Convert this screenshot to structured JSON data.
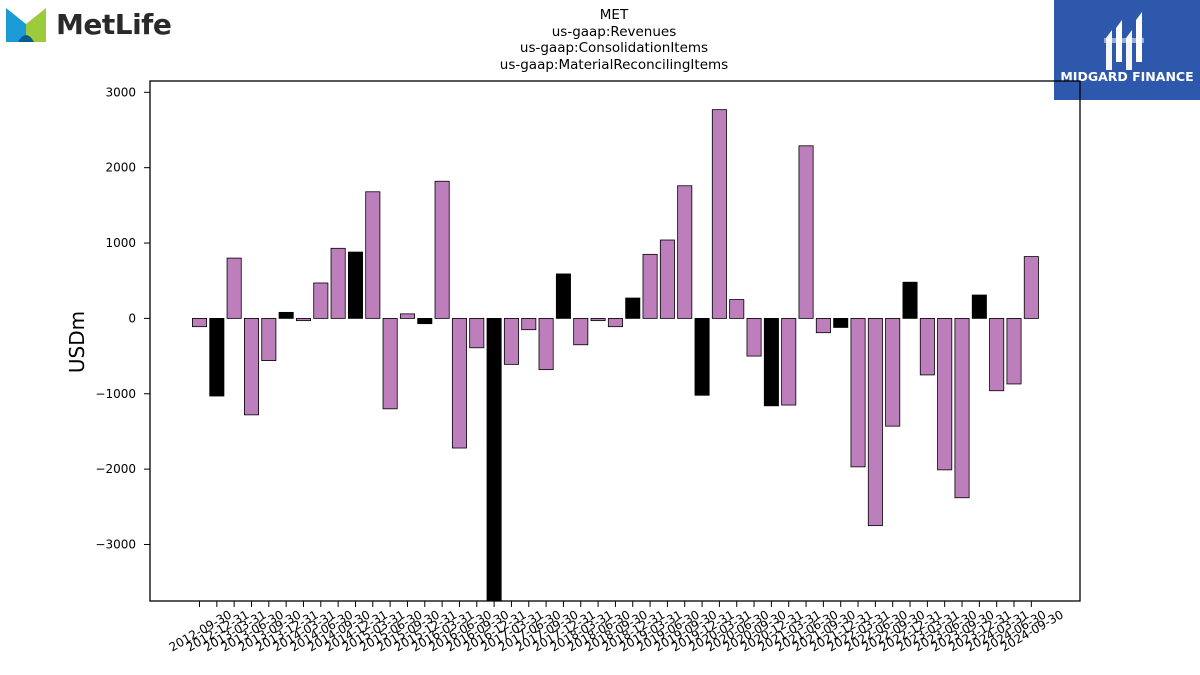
{
  "header": {
    "company_logo_text": "MetLife",
    "title_lines": [
      "MET",
      "us-gaap:Revenues",
      "us-gaap:ConsolidationItems",
      "us-gaap:MaterialReconcilingItems"
    ],
    "watermark_text": "MIDGARD FINANCE"
  },
  "colors": {
    "bar_default": "#bc7fbc",
    "bar_highlight": "#000000",
    "bar_edge": "#000000",
    "watermark_bg": "#2e58ac",
    "metlife_blue": "#1c9ad6",
    "metlife_green": "#9ccb3b"
  },
  "chart_data": {
    "type": "bar",
    "title": "MET\nus-gaap:Revenues\nus-gaap:ConsolidationItems\nus-gaap:MaterialReconcilingItems",
    "xlabel": "",
    "ylabel": "USDm",
    "ylim": [
      -3750,
      3150
    ],
    "yticks": [
      3000,
      2000,
      1000,
      0,
      -1000,
      -2000,
      -3000
    ],
    "ytick_labels": [
      "3000",
      "2000",
      "1000",
      "0",
      "−1000",
      "−2000",
      "−3000"
    ],
    "grid": false,
    "legend": "none",
    "categories": [
      "2012-09-30",
      "2012-12-31",
      "2013-03-31",
      "2013-06-30",
      "2013-09-30",
      "2013-12-31",
      "2014-03-31",
      "2014-06-30",
      "2014-09-30",
      "2014-12-31",
      "2015-03-31",
      "2015-06-30",
      "2015-09-30",
      "2015-12-31",
      "2016-03-31",
      "2016-06-30",
      "2016-09-30",
      "2016-12-31",
      "2017-03-31",
      "2017-06-30",
      "2017-09-30",
      "2017-12-31",
      "2018-03-31",
      "2018-06-30",
      "2018-09-30",
      "2018-12-31",
      "2019-03-31",
      "2019-06-30",
      "2019-09-30",
      "2019-12-31",
      "2020-03-31",
      "2020-06-30",
      "2020-09-30",
      "2020-12-31",
      "2021-03-31",
      "2021-06-30",
      "2021-09-30",
      "2021-12-31",
      "2022-03-31",
      "2022-06-30",
      "2022-09-30",
      "2022-12-31",
      "2023-03-31",
      "2023-06-30",
      "2023-09-30",
      "2023-12-31",
      "2024-03-31",
      "2024-06-30",
      "2024-09-30"
    ],
    "values": [
      -110,
      -1030,
      800,
      -1280,
      -560,
      80,
      -30,
      470,
      930,
      880,
      1680,
      -1200,
      60,
      -70,
      1820,
      -1720,
      -390,
      -3800,
      -610,
      -150,
      -680,
      590,
      -350,
      -30,
      -110,
      270,
      850,
      1040,
      1760,
      -1020,
      2770,
      250,
      -500,
      -1160,
      -1150,
      2290,
      -190,
      -120,
      -1970,
      -2750,
      -1430,
      480,
      -750,
      -2010,
      -2380,
      310,
      -960,
      -870,
      820
    ],
    "highlight": [
      false,
      true,
      false,
      false,
      false,
      true,
      false,
      false,
      false,
      true,
      false,
      false,
      false,
      true,
      false,
      false,
      false,
      true,
      false,
      false,
      false,
      true,
      false,
      false,
      false,
      true,
      false,
      false,
      false,
      true,
      false,
      false,
      false,
      true,
      false,
      false,
      false,
      true,
      false,
      false,
      false,
      true,
      false,
      false,
      false,
      true,
      false,
      false,
      false
    ]
  }
}
